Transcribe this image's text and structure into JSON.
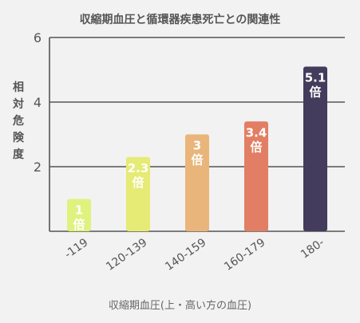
{
  "chart_data": {
    "type": "bar",
    "title": "収縮期血圧と循環器疾患死亡との関連性",
    "xlabel": "収縮期血圧(上・高い方の血圧)",
    "ylabel": "相対危険度",
    "categories": [
      "-119",
      "120-139",
      "140-159",
      "160-179",
      "180-"
    ],
    "values": [
      1,
      2.3,
      3,
      3.4,
      5.1
    ],
    "data_labels": [
      "1倍",
      "2.3倍",
      "3倍",
      "3.4倍",
      "5.1倍"
    ],
    "yticks": [
      2,
      4,
      6
    ],
    "ylim": [
      0,
      6
    ],
    "grid": true,
    "legend": "none",
    "colors": [
      "#dff27e",
      "#e5eb74",
      "#e9b57a",
      "#e27e63",
      "#433c5c"
    ]
  }
}
